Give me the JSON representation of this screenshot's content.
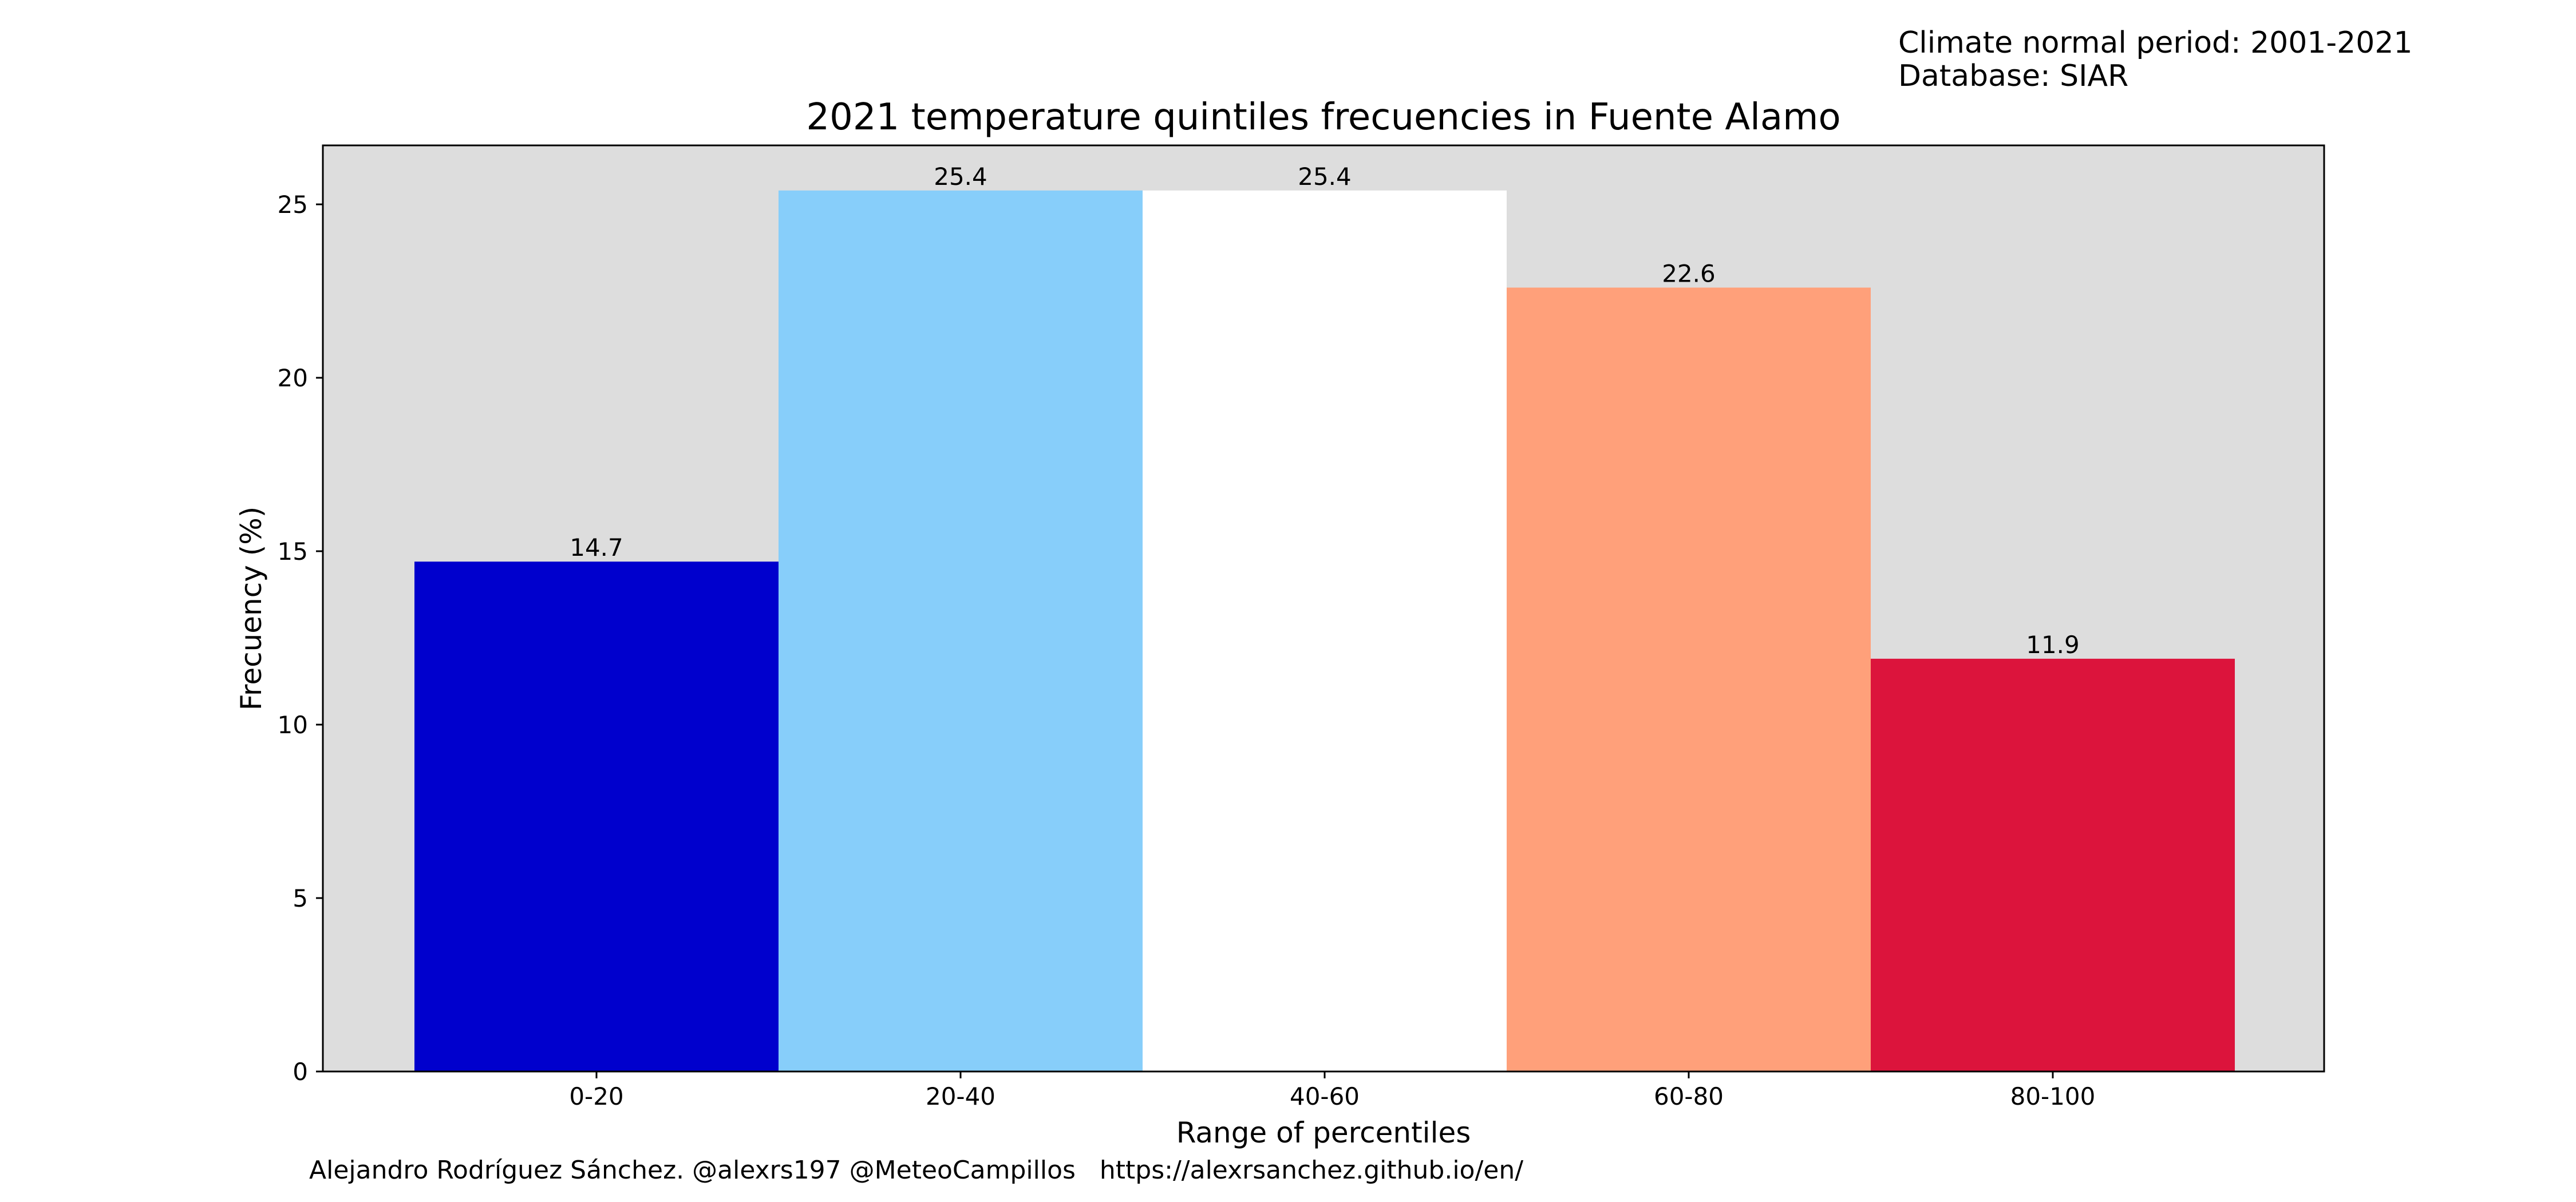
{
  "info": {
    "normal_period": "Climate normal period: 2001-2021",
    "database": "Database: SIAR"
  },
  "credits": "Alejandro Rodríguez Sánchez. @alexrs197 @MeteoCampillos   https://alexrsanchez.github.io/en/",
  "chart_data": {
    "type": "bar",
    "title": "2021 temperature quintiles frecuencies in Fuente Alamo",
    "xlabel": "Range of percentiles",
    "ylabel": "Frecuency (%)",
    "categories": [
      "0-20",
      "20-40",
      "40-60",
      "60-80",
      "80-100"
    ],
    "values": [
      14.7,
      25.4,
      25.4,
      22.6,
      11.9
    ],
    "data_labels": [
      "14.7",
      "25.4",
      "25.4",
      "22.6",
      "11.9"
    ],
    "bar_colors": [
      "#0000cd",
      "#87cefa",
      "#ffffff",
      "#ffa07a",
      "#dc143c"
    ],
    "ylim": [
      0,
      26.7
    ],
    "yticks": [
      0,
      5,
      10,
      15,
      20,
      25
    ],
    "plot_background": "#dddddd",
    "grid": false,
    "legend": "none"
  }
}
